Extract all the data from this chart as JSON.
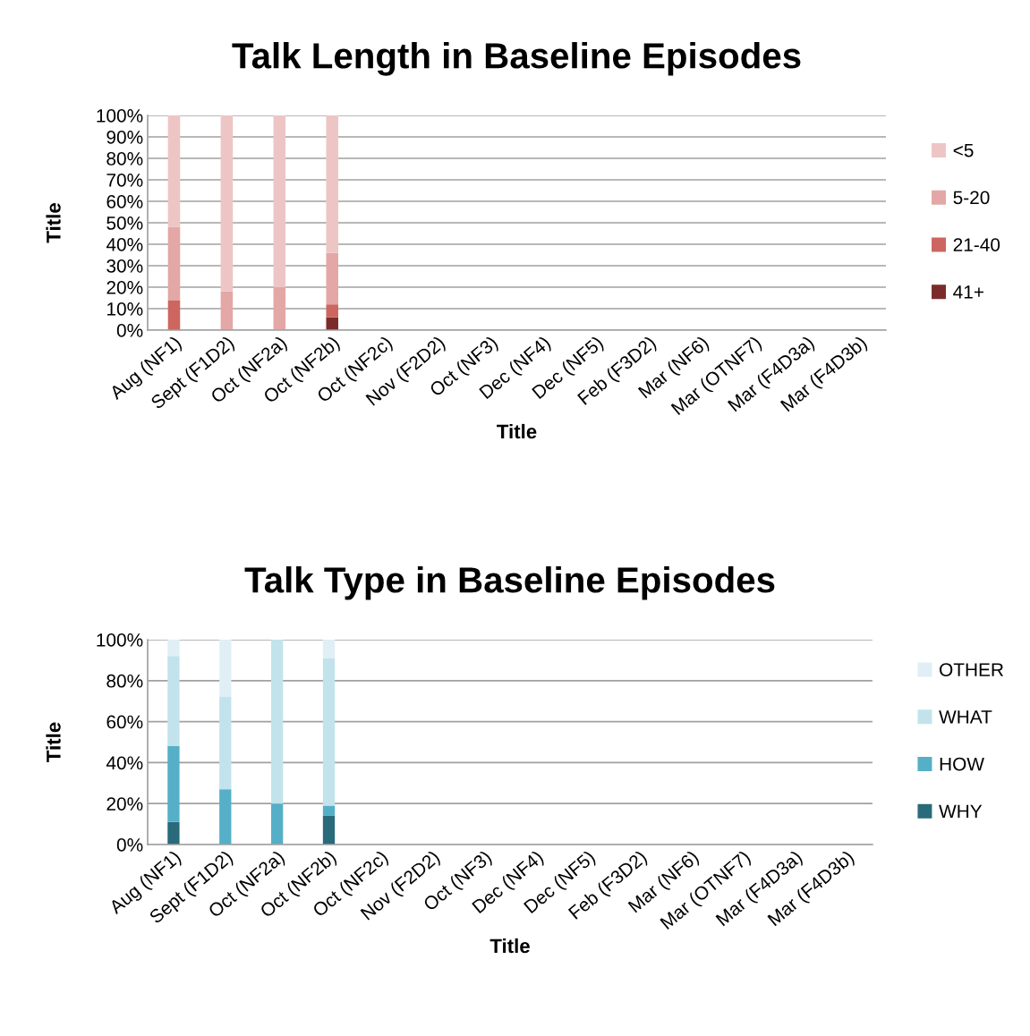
{
  "chart_data": [
    {
      "type": "bar",
      "stacked": true,
      "title": "Talk Length in Baseline Episodes",
      "xlabel": "Title",
      "ylabel": "Title",
      "categories": [
        "Aug (NF1)",
        "Sept (F1D2)",
        "Oct (NF2a)",
        "Oct (NF2b)",
        "Oct (NF2c)",
        "Nov (F2D2)",
        "Oct (NF3)",
        "Dec (NF4)",
        "Dec (NF5)",
        "Feb (F3D2)",
        "Mar (NF6)",
        "Mar (OTNF7)",
        "Mar (F4D3a)",
        "Mar (F4D3b)"
      ],
      "series": [
        {
          "name": "41+",
          "color": "#7b2c2a",
          "values": [
            0,
            0,
            0,
            6,
            null,
            null,
            null,
            null,
            null,
            null,
            null,
            null,
            null,
            null
          ]
        },
        {
          "name": "21-40",
          "color": "#cd665f",
          "values": [
            14,
            0,
            0,
            6,
            null,
            null,
            null,
            null,
            null,
            null,
            null,
            null,
            null,
            null
          ]
        },
        {
          "name": "5-20",
          "color": "#e3a7a6",
          "values": [
            34,
            18,
            20,
            24,
            null,
            null,
            null,
            null,
            null,
            null,
            null,
            null,
            null,
            null
          ]
        },
        {
          "name": "<5",
          "color": "#eec5c5",
          "values": [
            52,
            82,
            80,
            64,
            null,
            null,
            null,
            null,
            null,
            null,
            null,
            null,
            null,
            null
          ]
        }
      ],
      "ylim": [
        0,
        100
      ],
      "yticks": [
        {
          "value": 0,
          "label": "0%"
        },
        {
          "value": 10,
          "label": "10%"
        },
        {
          "value": 20,
          "label": "20%"
        },
        {
          "value": 30,
          "label": "30%"
        },
        {
          "value": 40,
          "label": "40%"
        },
        {
          "value": 50,
          "label": "50%"
        },
        {
          "value": 60,
          "label": "60%"
        },
        {
          "value": 70,
          "label": "70%"
        },
        {
          "value": 80,
          "label": "80%"
        },
        {
          "value": 90,
          "label": "90%"
        },
        {
          "value": 100,
          "label": "100%"
        }
      ],
      "grid": "y",
      "legend": "right"
    },
    {
      "type": "bar",
      "stacked": true,
      "title": "Talk Type in Baseline Episodes",
      "xlabel": "Title",
      "ylabel": "Title",
      "categories": [
        "Aug (NF1)",
        "Sept (F1D2)",
        "Oct (NF2a)",
        "Oct (NF2b)",
        "Oct (NF2c)",
        "Nov (F2D2)",
        "Oct (NF3)",
        "Dec (NF4)",
        "Dec (NF5)",
        "Feb (F3D2)",
        "Mar (NF6)",
        "Mar (OTNF7)",
        "Mar (F4D3a)",
        "Mar (F4D3b)"
      ],
      "series": [
        {
          "name": "WHY",
          "color": "#296a7b",
          "values": [
            11,
            0,
            0,
            14,
            null,
            null,
            null,
            null,
            null,
            null,
            null,
            null,
            null,
            null
          ]
        },
        {
          "name": "HOW",
          "color": "#55afc7",
          "values": [
            37,
            27,
            20,
            5,
            null,
            null,
            null,
            null,
            null,
            null,
            null,
            null,
            null,
            null
          ]
        },
        {
          "name": "WHAT",
          "color": "#c2e3ec",
          "values": [
            44,
            45,
            80,
            72,
            null,
            null,
            null,
            null,
            null,
            null,
            null,
            null,
            null,
            null
          ]
        },
        {
          "name": "OTHER",
          "color": "#e0eff6",
          "values": [
            8,
            28,
            0,
            9,
            null,
            null,
            null,
            null,
            null,
            null,
            null,
            null,
            null,
            null
          ]
        }
      ],
      "ylim": [
        0,
        100
      ],
      "yticks": [
        {
          "value": 0,
          "label": "0%"
        },
        {
          "value": 20,
          "label": "20%"
        },
        {
          "value": 40,
          "label": "40%"
        },
        {
          "value": 60,
          "label": "60%"
        },
        {
          "value": 80,
          "label": "80%"
        },
        {
          "value": 100,
          "label": "100%"
        }
      ],
      "grid": "y",
      "legend": "right"
    }
  ]
}
